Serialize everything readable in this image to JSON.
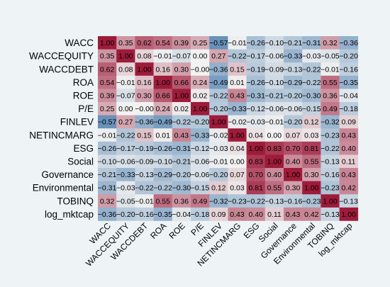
{
  "chart_data": {
    "type": "heatmap",
    "variables": [
      "WACC",
      "WACCEQUITY",
      "WACCDEBT",
      "ROA",
      "ROE",
      "P/E",
      "FINLEV",
      "NETINCMARG",
      "ESG",
      "Social",
      "Governance",
      "Environmental",
      "TOBINQ",
      "log_mktcap"
    ],
    "row_labels": [
      "WACC",
      "WACCEQUITY",
      "WACCDEBT",
      "ROA",
      "ROE",
      "P/E",
      "FINLEV",
      "NETINCMARG",
      "ESG",
      "Social",
      "Governance",
      "Environmental",
      "TOBINQ",
      "log_mktcap"
    ],
    "col_labels": [
      "WACC",
      "WACCEQUITY",
      "WACCDEBT",
      "ROA",
      "ROE",
      "P/E",
      "FINLEV",
      "NETINCMARG",
      "ESG",
      "Social",
      "Governance",
      "Environmental",
      "TOBINQ",
      "log_mktcap"
    ],
    "cell_labels": [
      [
        "1.00",
        "0.35",
        "0.62",
        "0.54",
        "0.39",
        "0.25",
        "−0.57",
        "−0.01",
        "−0.26",
        "−0.10",
        "−0.21",
        "−0.31",
        "0.32",
        "−0.36"
      ],
      [
        "0.35",
        "1.00",
        "0.08",
        "−0.01",
        "−0.07",
        "0.00",
        "0.27",
        "−0.22",
        "−0.17",
        "−0.06",
        "−0.33",
        "−0.03",
        "−0.05",
        "−0.20"
      ],
      [
        "0.62",
        "0.08",
        "1.00",
        "0.16",
        "0.30",
        "−0.00",
        "−0.36",
        "0.15",
        "−0.19",
        "−0.09",
        "−0.13",
        "−0.22",
        "−0.01",
        "−0.16"
      ],
      [
        "0.54",
        "−0.01",
        "0.16",
        "1.00",
        "0.66",
        "0.24",
        "−0.49",
        "0.01",
        "−0.26",
        "−0.10",
        "−0.29",
        "−0.22",
        "0.55",
        "−0.35"
      ],
      [
        "0.39",
        "−0.07",
        "0.30",
        "0.66",
        "1.00",
        "0.02",
        "−0.22",
        "0.43",
        "−0.31",
        "−0.21",
        "−0.20",
        "−0.30",
        "0.36",
        "−0.04"
      ],
      [
        "0.25",
        "0.00",
        "−0.00",
        "0.24",
        "0.02",
        "1.00",
        "−0.20",
        "−0.33",
        "−0.12",
        "−0.06",
        "−0.06",
        "−0.15",
        "0.49",
        "−0.18"
      ],
      [
        "−0.57",
        "0.27",
        "−0.36",
        "−0.49",
        "−0.22",
        "−0.20",
        "1.00",
        "−0.02",
        "−0.03",
        "−0.01",
        "−0.20",
        "0.12",
        "−0.32",
        "0.09"
      ],
      [
        "−0.01",
        "−0.22",
        "0.15",
        "0.01",
        "0.43",
        "−0.33",
        "−0.02",
        "1.00",
        "0.04",
        "0.00",
        "0.07",
        "0.03",
        "−0.23",
        "0.43"
      ],
      [
        "−0.26",
        "−0.17",
        "−0.19",
        "−0.26",
        "−0.31",
        "−0.12",
        "−0.03",
        "0.04",
        "1.00",
        "0.83",
        "0.70",
        "0.81",
        "−0.22",
        "0.40"
      ],
      [
        "−0.10",
        "−0.06",
        "−0.09",
        "−0.10",
        "−0.21",
        "−0.06",
        "−0.01",
        "0.00",
        "0.83",
        "1.00",
        "0.40",
        "0.55",
        "−0.13",
        "0.11"
      ],
      [
        "−0.21",
        "−0.33",
        "−0.13",
        "−0.29",
        "−0.20",
        "−0.06",
        "−0.20",
        "0.07",
        "0.70",
        "0.40",
        "1.00",
        "0.30",
        "−0.16",
        "0.43"
      ],
      [
        "−0.31",
        "−0.03",
        "−0.22",
        "−0.22",
        "−0.30",
        "−0.15",
        "0.12",
        "0.03",
        "0.81",
        "0.55",
        "0.30",
        "1.00",
        "−0.23",
        "0.42"
      ],
      [
        "0.32",
        "−0.05",
        "−0.01",
        "0.55",
        "0.36",
        "0.49",
        "−0.32",
        "−0.23",
        "−0.22",
        "−0.13",
        "−0.16",
        "−0.23",
        "1.00",
        "−0.13"
      ],
      [
        "−0.36",
        "−0.20",
        "−0.16",
        "−0.35",
        "−0.04",
        "−0.18",
        "0.09",
        "0.43",
        "0.40",
        "0.11",
        "0.43",
        "0.42",
        "−0.13",
        "1.00"
      ]
    ],
    "values": [
      [
        1.0,
        0.35,
        0.62,
        0.54,
        0.39,
        0.25,
        -0.57,
        -0.01,
        -0.26,
        -0.1,
        -0.21,
        -0.31,
        0.32,
        -0.36
      ],
      [
        0.35,
        1.0,
        0.08,
        -0.01,
        -0.07,
        0.0,
        0.27,
        -0.22,
        -0.17,
        -0.06,
        -0.33,
        -0.03,
        -0.05,
        -0.2
      ],
      [
        0.62,
        0.08,
        1.0,
        0.16,
        0.3,
        -0.0,
        -0.36,
        0.15,
        -0.19,
        -0.09,
        -0.13,
        -0.22,
        -0.01,
        -0.16
      ],
      [
        0.54,
        -0.01,
        0.16,
        1.0,
        0.66,
        0.24,
        -0.49,
        0.01,
        -0.26,
        -0.1,
        -0.29,
        -0.22,
        0.55,
        -0.35
      ],
      [
        0.39,
        -0.07,
        0.3,
        0.66,
        1.0,
        0.02,
        -0.22,
        0.43,
        -0.31,
        -0.21,
        -0.2,
        -0.3,
        0.36,
        -0.04
      ],
      [
        0.25,
        0.0,
        -0.0,
        0.24,
        0.02,
        1.0,
        -0.2,
        -0.33,
        -0.12,
        -0.06,
        -0.06,
        -0.15,
        0.49,
        -0.18
      ],
      [
        -0.57,
        0.27,
        -0.36,
        -0.49,
        -0.22,
        -0.2,
        1.0,
        -0.02,
        -0.03,
        -0.01,
        -0.2,
        0.12,
        -0.32,
        0.09
      ],
      [
        -0.01,
        -0.22,
        0.15,
        0.01,
        0.43,
        -0.33,
        -0.02,
        1.0,
        0.04,
        0.0,
        0.07,
        0.03,
        -0.23,
        0.43
      ],
      [
        -0.26,
        -0.17,
        -0.19,
        -0.26,
        -0.31,
        -0.12,
        -0.03,
        0.04,
        1.0,
        0.83,
        0.7,
        0.81,
        -0.22,
        0.4
      ],
      [
        -0.1,
        -0.06,
        -0.09,
        -0.1,
        -0.21,
        -0.06,
        -0.01,
        0.0,
        0.83,
        1.0,
        0.4,
        0.55,
        -0.13,
        0.11
      ],
      [
        -0.21,
        -0.33,
        -0.13,
        -0.29,
        -0.2,
        -0.06,
        -0.2,
        0.07,
        0.7,
        0.4,
        1.0,
        0.3,
        -0.16,
        0.43
      ],
      [
        -0.31,
        -0.03,
        -0.22,
        -0.22,
        -0.3,
        -0.15,
        0.12,
        0.03,
        0.81,
        0.55,
        0.3,
        1.0,
        -0.23,
        0.42
      ],
      [
        0.32,
        -0.05,
        -0.01,
        0.55,
        0.36,
        0.49,
        -0.32,
        -0.23,
        -0.22,
        -0.13,
        -0.16,
        -0.23,
        1.0,
        -0.13
      ],
      [
        -0.36,
        -0.2,
        -0.16,
        -0.35,
        -0.04,
        -0.18,
        0.09,
        0.43,
        0.4,
        0.11,
        0.43,
        0.42,
        -0.13,
        1.0
      ]
    ],
    "value_range": [
      -1,
      1
    ],
    "color_scale": {
      "negative": "#1a5c9c",
      "zero": "#f2f2f2",
      "positive": "#9e1b3a"
    },
    "background_color": "#eef4f5",
    "grid": false,
    "legend": "none"
  }
}
